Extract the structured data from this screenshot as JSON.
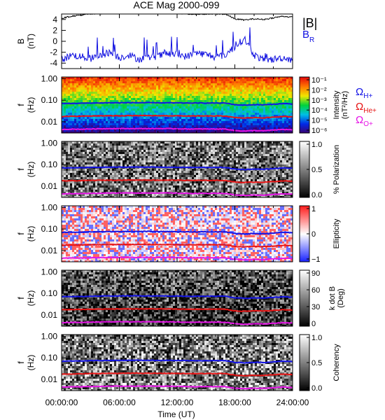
{
  "title": "ACE Mag 2000-099",
  "time_axis": {
    "label": "Time (UT)",
    "ticks": [
      "00:00:00",
      "06:00:00",
      "12:00:00",
      "18:00:00",
      "24:00:00"
    ],
    "range_hours": [
      0,
      24
    ]
  },
  "freq_axis": {
    "label_line1": "f",
    "label_line2": "(Hz)",
    "scale": "log",
    "range_hz": [
      0.003,
      1.2
    ],
    "ticks": [
      "1.00",
      "0.10",
      "0.01"
    ]
  },
  "legend": {
    "B_total": "|B|",
    "B_R_main": "B",
    "B_R_sub": "R",
    "omega_symbol": "Ω",
    "h_sub": "H+",
    "he_sub": "He+",
    "o_sub": "O+",
    "colors": {
      "total": "#000000",
      "br": "#1010e0",
      "h": "#1414e6",
      "he": "#e61414",
      "o": "#e614e6"
    }
  },
  "panels": {
    "field": {
      "ylabel_main": "B",
      "ylabel_sub": "(nT)",
      "yticks": [
        "4",
        "2",
        "0",
        "-2",
        "-4"
      ],
      "ylim": [
        -5,
        5
      ]
    },
    "intensity": {
      "cb_label": "Intensity",
      "cb_unit": "(nT²/Hz)",
      "cb_ticks": [
        "10⁻¹",
        "10⁻²",
        "10⁻³",
        "10⁻⁴",
        "10⁻⁵",
        "10⁻⁶"
      ],
      "cmap": "rainbow"
    },
    "polarization": {
      "cb_label": "% Polarization",
      "cb_ticks": [
        "1.0",
        "0.5",
        "0.0"
      ],
      "cmap": "grayscale"
    },
    "ellipticity": {
      "cb_label": "Ellipticity",
      "cb_ticks": [
        "1",
        "0",
        "−1"
      ],
      "cmap": "blue-white-red"
    },
    "kdotb": {
      "cb_label_line1": "k dot B",
      "cb_label_line2": "(Deg)",
      "cb_ticks": [
        "90",
        "60",
        "30",
        "0"
      ],
      "cmap": "grayscale"
    },
    "coherency": {
      "cb_label": "Coherency",
      "cb_ticks": [
        "1.0",
        "0.5",
        "0.0"
      ],
      "cmap": "grayscale"
    }
  },
  "chart_data": {
    "type": "line",
    "title": "ACE Mag 2000-099",
    "xlabel": "Time (UT)",
    "ylabel": "B (nT)",
    "xlim": [
      0,
      24
    ],
    "ylim": [
      -5,
      5
    ],
    "x": [
      0,
      1,
      2,
      3,
      4,
      5,
      6,
      7,
      8,
      9,
      10,
      11,
      12,
      13,
      14,
      15,
      16,
      17,
      18,
      19,
      20,
      21,
      22,
      23,
      24
    ],
    "series": [
      {
        "name": "|B|",
        "values": [
          4.2,
          4.6,
          4.8,
          5.0,
          5.1,
          5.2,
          5.2,
          5.3,
          5.3,
          5.3,
          5.2,
          5.2,
          5.1,
          5.0,
          5.0,
          5.0,
          5.0,
          5.0,
          4.1,
          3.9,
          4.1,
          4.0,
          4.3,
          4.6,
          4.4
        ]
      },
      {
        "name": "B_R",
        "values": [
          -3.5,
          -2.5,
          -2.8,
          -3.2,
          -2.6,
          -2.0,
          -3.0,
          -2.5,
          -3.3,
          -3.0,
          -2.7,
          -2.3,
          -2.4,
          -2.8,
          -2.1,
          -2.4,
          -2.9,
          -2.5,
          -1.0,
          0.5,
          -2.5,
          -3.5,
          -3.3,
          -3.0,
          -3.4
        ]
      },
      {
        "name": "ΩH+",
        "values": [
          0.07,
          0.071,
          0.072,
          0.074,
          0.075,
          0.076,
          0.076,
          0.077,
          0.077,
          0.077,
          0.076,
          0.076,
          0.075,
          0.074,
          0.074,
          0.074,
          0.074,
          0.074,
          0.062,
          0.059,
          0.062,
          0.061,
          0.065,
          0.07,
          0.067
        ]
      },
      {
        "name": "ΩHe+",
        "values": [
          0.0175,
          0.0178,
          0.018,
          0.0185,
          0.0188,
          0.019,
          0.019,
          0.0192,
          0.0192,
          0.0192,
          0.019,
          0.019,
          0.0188,
          0.0185,
          0.0185,
          0.0185,
          0.0185,
          0.0185,
          0.0155,
          0.0148,
          0.0155,
          0.0152,
          0.0163,
          0.0175,
          0.0168
        ]
      },
      {
        "name": "ΩO+",
        "values": [
          0.0044,
          0.0045,
          0.0045,
          0.0046,
          0.0047,
          0.0048,
          0.0048,
          0.0048,
          0.0048,
          0.0048,
          0.0048,
          0.0048,
          0.0047,
          0.0046,
          0.0046,
          0.0046,
          0.0046,
          0.0046,
          0.0039,
          0.0037,
          0.0039,
          0.0038,
          0.0041,
          0.0044,
          0.0042
        ]
      }
    ]
  }
}
